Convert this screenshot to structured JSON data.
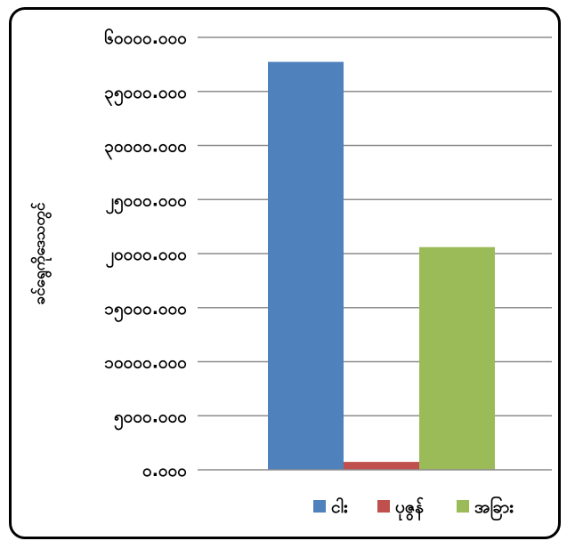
{
  "chart_data": {
    "type": "bar",
    "categories": [
      ""
    ],
    "series": [
      {
        "name": "ငါး",
        "values": [
          56600
        ],
        "color": "#4F81BD"
      },
      {
        "name": "ပုဇွန်",
        "values": [
          1100
        ],
        "color": "#C0504D"
      },
      {
        "name": "အခြား",
        "values": [
          30900
        ],
        "color": "#9BBB59"
      }
    ],
    "title": "",
    "xlabel": "",
    "ylabel": "ခင်ရွေကိုဒေသတွင်",
    "ylim": [
      0,
      60000
    ],
    "yticks": [
      "၀.၀၀၀",
      "၅၀၀၀.၀၀၀",
      "၁၀၀၀၀.၀၀၀",
      "၁၅၀၀၀.၀၀၀",
      "၂၀၀၀၀.၀၀၀",
      "၂၅၀၀၀.၀၀၀",
      "၃၀၀၀၀.၀၀၀",
      "၃၅၀၀၀.၀၀၀",
      "၆၀၀၀၀.၀၀၀"
    ],
    "grid": true,
    "legend": "bottom"
  }
}
